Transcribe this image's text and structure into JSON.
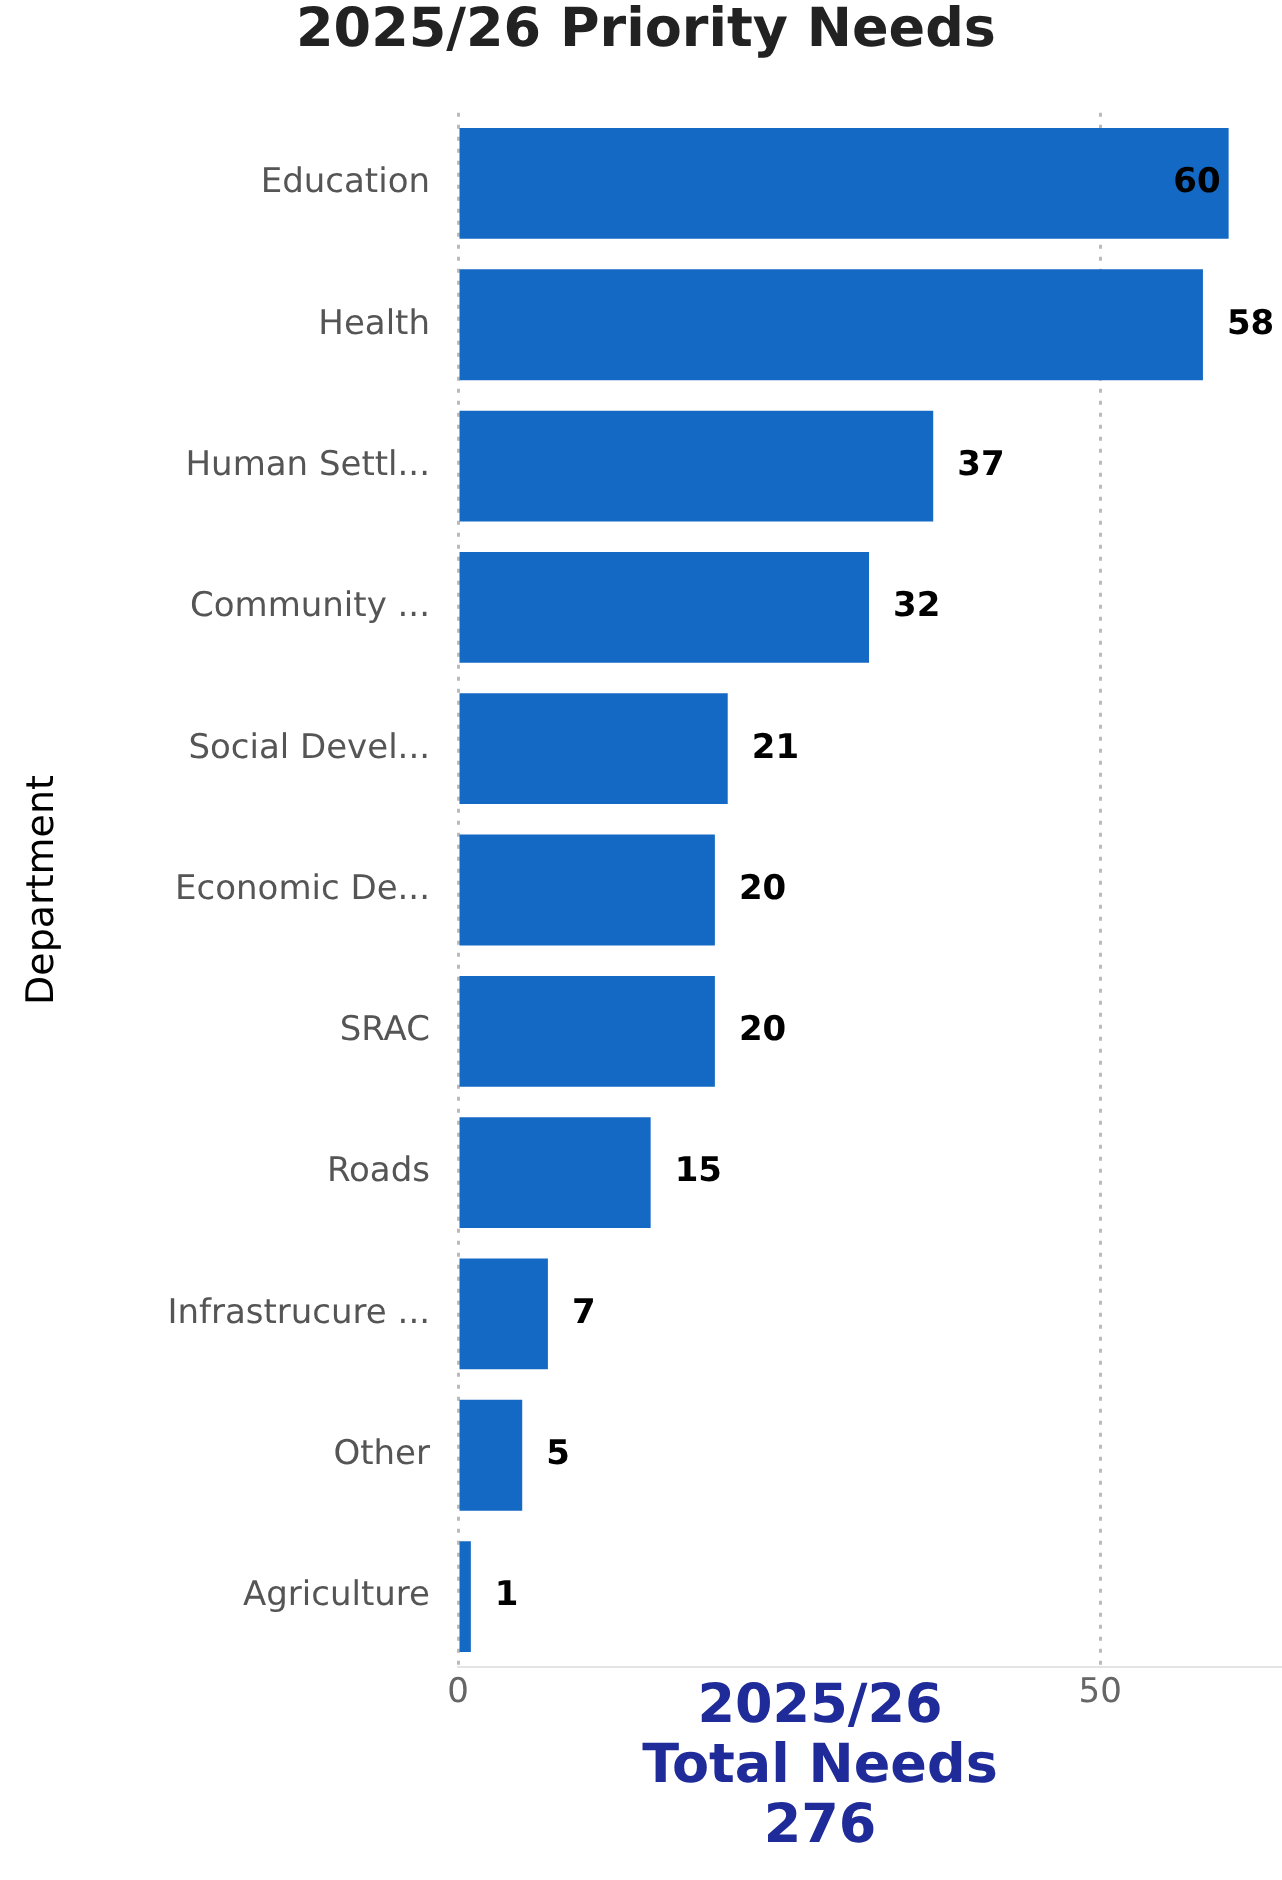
{
  "chart_data": {
    "type": "bar",
    "orientation": "horizontal",
    "title": "2025/26 Priority Needs",
    "ylabel": "Department",
    "categories": [
      "Education",
      "Health",
      "Human Settl...",
      "Community ...",
      "Social Devel...",
      "Economic De...",
      "SRAC",
      "Roads",
      "Infrastrucure ...",
      "Other",
      "Agriculture"
    ],
    "values": [
      60,
      58,
      37,
      32,
      21,
      20,
      20,
      15,
      7,
      5,
      1
    ],
    "color": "#1469c4",
    "xlim": [
      0,
      64
    ],
    "xticks": [
      0,
      50
    ],
    "grid": "x",
    "legend": false,
    "data_labels": true,
    "annotations": [
      "2025/26",
      "Total Needs",
      "276"
    ]
  }
}
